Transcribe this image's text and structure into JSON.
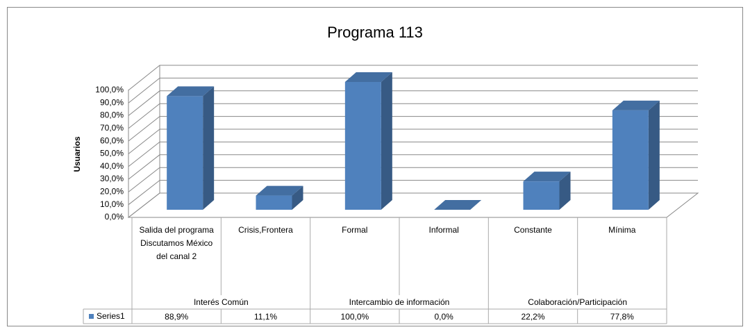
{
  "chart_data": {
    "type": "bar3d",
    "title": "Programa 113",
    "y_label": "Usuarios",
    "groups": [
      {
        "name": "Interés Común",
        "categories": [
          "Salida del programa Discutamos México del canal 2",
          "Crisis,Frontera"
        ]
      },
      {
        "name": "Intercambio de información",
        "categories": [
          "Formal",
          "Informal"
        ]
      },
      {
        "name": "Colaboración/Participación",
        "categories": [
          "Constante",
          "Mínima"
        ]
      }
    ],
    "series": [
      {
        "name": "Series1",
        "color": "#4f81bd",
        "values": [
          88.9,
          11.1,
          100,
          0,
          22.2,
          77.8
        ],
        "value_labels": [
          "88,9%",
          "11,1%",
          "100,0%",
          "0,0%",
          "22,2%",
          "77,8%"
        ]
      }
    ],
    "ylim": [
      0,
      100
    ],
    "yticks": [
      {
        "value": 0,
        "label": "0,0%"
      },
      {
        "value": 10,
        "label": "10,0%"
      },
      {
        "value": 20,
        "label": "20,0%"
      },
      {
        "value": 30,
        "label": "30,0%"
      },
      {
        "value": 40,
        "label": "40,0%"
      },
      {
        "value": 50,
        "label": "50,0%"
      },
      {
        "value": 60,
        "label": "60,0%"
      },
      {
        "value": 70,
        "label": "70,0%"
      },
      {
        "value": 80,
        "label": "80,0%"
      },
      {
        "value": 90,
        "label": "90,0%"
      },
      {
        "value": 100,
        "label": "100,0%"
      }
    ],
    "grid": true
  }
}
